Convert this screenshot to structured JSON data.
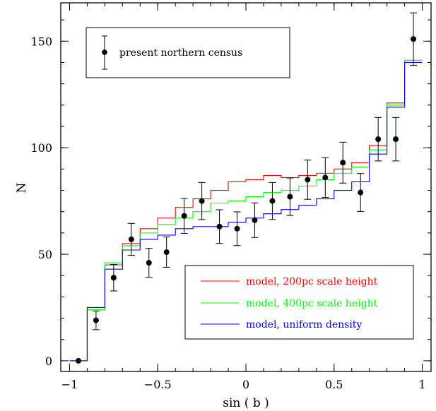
{
  "chart_data": {
    "type": "scatter",
    "xlabel": "sin ( b )",
    "ylabel": "N",
    "xlim": [
      -1.05,
      1.05
    ],
    "ylim": [
      -5,
      168
    ],
    "xticks": [
      {
        "value": -1,
        "label": "−1"
      },
      {
        "value": -0.5,
        "label": "−0.5"
      },
      {
        "value": 0,
        "label": "0"
      },
      {
        "value": 0.5,
        "label": "0.5"
      },
      {
        "value": 1,
        "label": "1"
      }
    ],
    "yticks": [
      {
        "value": 0,
        "label": "0"
      },
      {
        "value": 50,
        "label": "50"
      },
      {
        "value": 100,
        "label": "100"
      },
      {
        "value": 150,
        "label": "150"
      }
    ],
    "grid": false,
    "census": {
      "name": "present northern census",
      "points": [
        {
          "x": -0.95,
          "y": 0,
          "err": 0
        },
        {
          "x": -0.85,
          "y": 19,
          "err": 4.4
        },
        {
          "x": -0.75,
          "y": 39,
          "err": 6.2
        },
        {
          "x": -0.65,
          "y": 57,
          "err": 7.5
        },
        {
          "x": -0.55,
          "y": 46,
          "err": 6.8
        },
        {
          "x": -0.45,
          "y": 51,
          "err": 7.1
        },
        {
          "x": -0.35,
          "y": 68,
          "err": 8.2
        },
        {
          "x": -0.25,
          "y": 75,
          "err": 8.7
        },
        {
          "x": -0.15,
          "y": 63,
          "err": 7.9
        },
        {
          "x": -0.05,
          "y": 62,
          "err": 7.9
        },
        {
          "x": 0.05,
          "y": 66,
          "err": 8.1
        },
        {
          "x": 0.15,
          "y": 75,
          "err": 8.7
        },
        {
          "x": 0.25,
          "y": 77,
          "err": 8.8
        },
        {
          "x": 0.35,
          "y": 85,
          "err": 9.2
        },
        {
          "x": 0.45,
          "y": 86,
          "err": 9.3
        },
        {
          "x": 0.55,
          "y": 93,
          "err": 9.6
        },
        {
          "x": 0.65,
          "y": 79,
          "err": 8.9
        },
        {
          "x": 0.75,
          "y": 104,
          "err": 10.2
        },
        {
          "x": 0.85,
          "y": 104,
          "err": 10.2
        },
        {
          "x": 0.95,
          "y": 151,
          "err": 12.3
        }
      ]
    },
    "models": [
      {
        "name": "model, 200pc scale height",
        "color": "#ff0000",
        "values": [
          0,
          24,
          45,
          55,
          62,
          67,
          72,
          76,
          80,
          84,
          85,
          87,
          86,
          87,
          88,
          90,
          93,
          101,
          121,
          141
        ]
      },
      {
        "name": "model, 400pc scale height",
        "color": "#00ff00",
        "values": [
          0,
          24,
          46,
          54,
          60,
          64,
          67,
          70,
          74,
          75,
          77,
          79,
          80,
          82,
          85,
          88,
          91,
          99,
          120,
          141
        ]
      },
      {
        "name": "model, uniform density",
        "color": "#0000ff",
        "values": [
          0,
          25,
          43,
          52,
          57,
          59,
          62,
          63,
          63,
          65,
          67,
          69,
          71,
          73,
          76,
          80,
          84,
          97,
          119,
          140
        ]
      }
    ],
    "bin_edges": [
      -1.0,
      -0.9,
      -0.8,
      -0.7,
      -0.6,
      -0.5,
      -0.4,
      -0.3,
      -0.2,
      -0.1,
      0.0,
      0.1,
      0.2,
      0.3,
      0.4,
      0.5,
      0.6,
      0.7,
      0.8,
      0.9,
      1.0
    ]
  }
}
